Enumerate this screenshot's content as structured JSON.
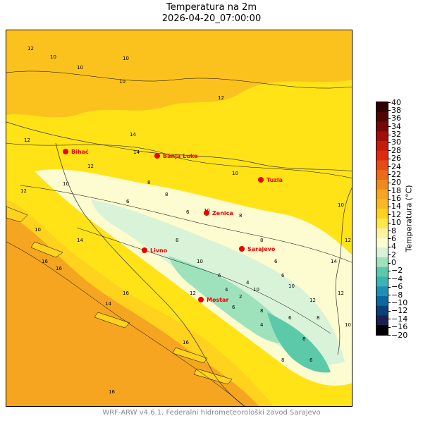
{
  "title": "Temperatura na 2m",
  "subtitle": "2026-04-20_07:00:00",
  "footer": "WRF-ARW v4.6.1, Federalni hidrometeorološki zavod Sarajevo",
  "colorbar": {
    "label": "Temperatura (°C)",
    "min": -20,
    "max": 40,
    "ticks": [
      "40",
      "38",
      "36",
      "34",
      "32",
      "30",
      "28",
      "26",
      "24",
      "22",
      "20",
      "18",
      "16",
      "14",
      "12",
      "10",
      "8",
      "6",
      "4",
      "2",
      "0",
      "−2",
      "−4",
      "−6",
      "−8",
      "−10",
      "−12",
      "−14",
      "−16",
      "−20"
    ],
    "colors": [
      "#000000",
      "#1a2050",
      "#0a3f78",
      "#0a6aa0",
      "#1e90b8",
      "#3cb4b4",
      "#5ccaa8",
      "#9ee2bc",
      "#d8f3d8",
      "#fdfbd0",
      "#fff2a0",
      "#ffe64a",
      "#ffd21e",
      "#fbb825",
      "#f5a51f",
      "#f08a1e",
      "#ec6a1a",
      "#e84a16",
      "#e02a10",
      "#c81c0a",
      "#a01008",
      "#780808",
      "#500404",
      "#300000"
    ]
  },
  "cities": [
    {
      "name": "Bihać"
    },
    {
      "name": "Banja Luka"
    },
    {
      "name": "Tuzla"
    },
    {
      "name": "Zenica"
    },
    {
      "name": "Livno"
    },
    {
      "name": "Sarajevo"
    },
    {
      "name": "Mostar"
    }
  ],
  "contour_labels": [
    "12",
    "10",
    "10",
    "10",
    "10",
    "12",
    "12",
    "14",
    "12",
    "14",
    "10",
    "12",
    "10",
    "8",
    "8",
    "6",
    "6",
    "10",
    "10",
    "8",
    "8",
    "6",
    "6",
    "8",
    "10",
    "14",
    "16",
    "16",
    "10",
    "6",
    "6",
    "8",
    "10",
    "12",
    "12",
    "14",
    "10",
    "8",
    "8",
    "6",
    "4",
    "4",
    "2",
    "4",
    "6",
    "8",
    "12",
    "16",
    "16",
    "14",
    "12",
    "10",
    "16"
  ]
}
